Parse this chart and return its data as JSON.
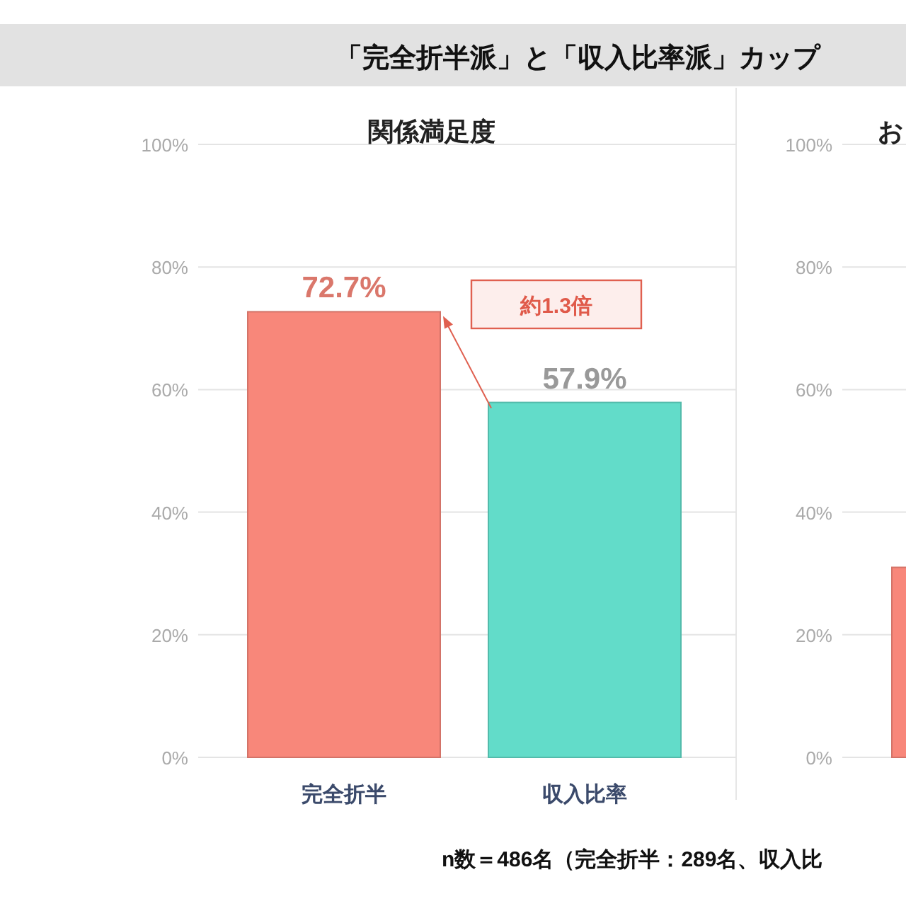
{
  "chart_data": [
    {
      "type": "bar",
      "title": "「完全折半派」と「収入比率派」カップ",
      "subtitle": "関係満足度",
      "categories": [
        "完全折半",
        "収入比率"
      ],
      "values": [
        72.7,
        57.9
      ],
      "colors": [
        "#f8877a",
        "#62dcc9"
      ],
      "value_labels": [
        "72.7%",
        "57.9%"
      ],
      "ylim": [
        0,
        100
      ],
      "yticks": [
        {
          "value": 0,
          "label": "0%"
        },
        {
          "value": 20,
          "label": "20%"
        },
        {
          "value": 40,
          "label": "40%"
        },
        {
          "value": 60,
          "label": "60%"
        },
        {
          "value": 80,
          "label": "80%"
        },
        {
          "value": 100,
          "label": "100%"
        }
      ],
      "grid": "y",
      "annotations": [
        "約1.3倍",
        "n数＝486名（完全折半：289名、収入比"
      ]
    },
    {
      "type": "bar",
      "title": "お",
      "categories": [
        null
      ],
      "values": [
        31
      ],
      "colors": [
        "#f8877a"
      ],
      "ylim": [
        0,
        100
      ],
      "yticks": [
        {
          "value": 0,
          "label": "0%"
        },
        {
          "value": 20,
          "label": "20%"
        },
        {
          "value": 40,
          "label": "40%"
        },
        {
          "value": 60,
          "label": "60%"
        },
        {
          "value": 80,
          "label": "80%"
        },
        {
          "value": 100,
          "label": "100%"
        }
      ],
      "grid": "y"
    }
  ]
}
